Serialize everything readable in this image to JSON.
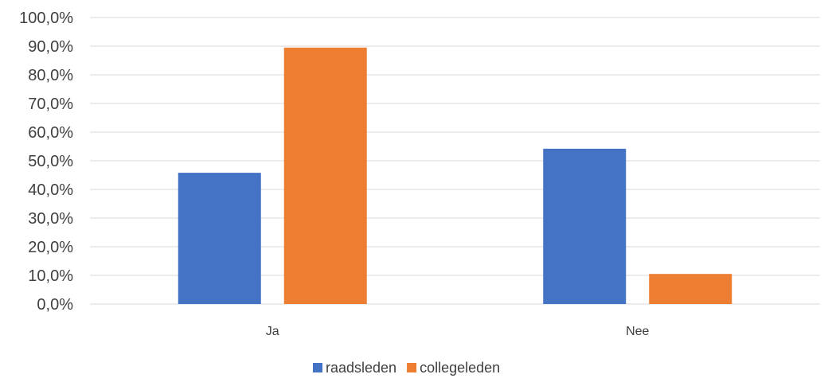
{
  "chart_data": {
    "type": "bar",
    "categories": [
      "Ja",
      "Nee"
    ],
    "series": [
      {
        "name": "raadsleden",
        "values": [
          45.8,
          54.2
        ],
        "color": "#4472c4"
      },
      {
        "name": "collegeleden",
        "values": [
          89.5,
          10.5
        ],
        "color": "#ed7d31"
      }
    ],
    "ylim": [
      0,
      100
    ],
    "yticks": [
      "0,0%",
      "10,0%",
      "20,0%",
      "30,0%",
      "40,0%",
      "50,0%",
      "60,0%",
      "70,0%",
      "80,0%",
      "90,0%",
      "100,0%"
    ],
    "grid": true,
    "legend": "bottom"
  }
}
